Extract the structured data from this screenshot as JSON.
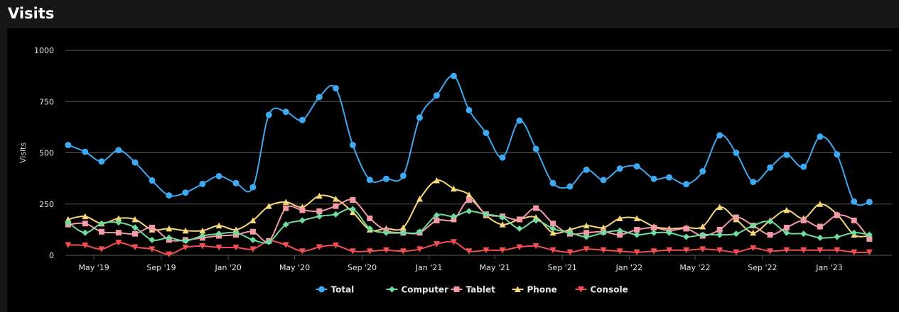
{
  "panel": {
    "title": "Visits"
  },
  "colors": {
    "background": "#000000",
    "page": "#171717",
    "grid": "#5a5a5a",
    "text": "#e6e6e6"
  },
  "chart_data": {
    "type": "line",
    "title": "",
    "xlabel": "",
    "ylabel": "Visits",
    "ylim": [
      0,
      1000
    ],
    "yticks": [
      0,
      250,
      500,
      750,
      1000
    ],
    "xlim": [
      "2019-03-10",
      "2023-04-25"
    ],
    "xticks": [
      {
        "date": "2019-05-01",
        "label": "May '19"
      },
      {
        "date": "2019-09-01",
        "label": "Sep '19"
      },
      {
        "date": "2020-01-01",
        "label": "Jan '20"
      },
      {
        "date": "2020-05-01",
        "label": "May '20"
      },
      {
        "date": "2020-09-01",
        "label": "Sep '20"
      },
      {
        "date": "2021-01-01",
        "label": "Jan '21"
      },
      {
        "date": "2021-05-01",
        "label": "May '21"
      },
      {
        "date": "2021-09-01",
        "label": "Sep '21"
      },
      {
        "date": "2022-01-01",
        "label": "Jan '22"
      },
      {
        "date": "2022-05-01",
        "label": "May '22"
      },
      {
        "date": "2022-09-01",
        "label": "Sep '22"
      },
      {
        "date": "2023-01-01",
        "label": "Jan '23"
      }
    ],
    "grid": true,
    "legend_position": "bottom",
    "x": [
      "2019-03-15",
      "2019-04-15",
      "2019-05-15",
      "2019-06-15",
      "2019-07-15",
      "2019-08-15",
      "2019-09-15",
      "2019-10-15",
      "2019-11-15",
      "2019-12-15",
      "2020-01-15",
      "2020-02-15",
      "2020-03-15",
      "2020-04-15",
      "2020-05-15",
      "2020-06-15",
      "2020-07-15",
      "2020-08-15",
      "2020-09-15",
      "2020-10-15",
      "2020-11-15",
      "2020-12-15",
      "2021-01-15",
      "2021-02-15",
      "2021-03-15",
      "2021-04-15",
      "2021-05-15",
      "2021-06-15",
      "2021-07-15",
      "2021-08-15",
      "2021-09-15",
      "2021-10-15",
      "2021-11-15",
      "2021-12-15",
      "2022-01-15",
      "2022-02-15",
      "2022-03-15",
      "2022-04-15",
      "2022-05-15",
      "2022-06-15",
      "2022-07-15",
      "2022-08-15",
      "2022-09-15",
      "2022-10-15",
      "2022-11-15",
      "2022-12-15",
      "2023-01-15",
      "2023-02-15",
      "2023-03-15"
    ],
    "series": [
      {
        "name": "Total",
        "color": "#3ea8f0",
        "marker": "circle",
        "values": [
          538,
          505,
          458,
          513,
          453,
          365,
          292,
          306,
          348,
          386,
          352,
          332,
          685,
          700,
          660,
          772,
          815,
          538,
          368,
          373,
          388,
          672,
          780,
          875,
          708,
          597,
          477,
          657,
          519,
          352,
          336,
          417,
          367,
          423,
          434,
          373,
          380,
          347,
          410,
          585,
          500,
          358,
          428,
          490,
          432,
          579,
          492,
          262,
          260
        ]
      },
      {
        "name": "Computer",
        "color": "#6fdb9e",
        "marker": "diamond",
        "values": [
          160,
          110,
          155,
          160,
          135,
          75,
          85,
          70,
          95,
          105,
          110,
          75,
          65,
          150,
          170,
          190,
          200,
          225,
          130,
          110,
          110,
          115,
          195,
          190,
          215,
          200,
          185,
          130,
          170,
          130,
          110,
          90,
          110,
          120,
          100,
          110,
          110,
          90,
          100,
          100,
          105,
          145,
          165,
          110,
          105,
          85,
          90,
          110,
          100
        ]
      },
      {
        "name": "Tablet",
        "color": "#f29aa6",
        "marker": "square",
        "values": [
          150,
          155,
          115,
          110,
          105,
          135,
          75,
          75,
          85,
          95,
          100,
          115,
          70,
          230,
          220,
          215,
          240,
          270,
          180,
          120,
          110,
          110,
          170,
          175,
          270,
          200,
          190,
          175,
          230,
          155,
          105,
          110,
          115,
          100,
          125,
          135,
          120,
          130,
          95,
          125,
          185,
          145,
          100,
          135,
          170,
          140,
          195,
          170,
          80
        ]
      },
      {
        "name": "Phone",
        "color": "#f5d97a",
        "marker": "triangle",
        "values": [
          175,
          190,
          155,
          180,
          175,
          125,
          130,
          120,
          120,
          145,
          125,
          170,
          240,
          260,
          235,
          290,
          275,
          210,
          125,
          130,
          135,
          275,
          365,
          325,
          295,
          195,
          150,
          175,
          185,
          110,
          125,
          145,
          135,
          180,
          180,
          140,
          130,
          135,
          140,
          235,
          175,
          110,
          170,
          220,
          180,
          250,
          200,
          100,
          95
        ]
      },
      {
        "name": "Console",
        "color": "#f24f55",
        "marker": "triangle-down",
        "values": [
          50,
          48,
          30,
          62,
          40,
          30,
          5,
          38,
          45,
          38,
          38,
          30,
          70,
          50,
          20,
          40,
          48,
          20,
          20,
          25,
          20,
          30,
          55,
          65,
          20,
          25,
          25,
          40,
          45,
          25,
          15,
          30,
          25,
          20,
          15,
          20,
          25,
          25,
          30,
          25,
          15,
          35,
          20,
          25,
          25,
          25,
          25,
          15,
          15
        ]
      }
    ]
  }
}
